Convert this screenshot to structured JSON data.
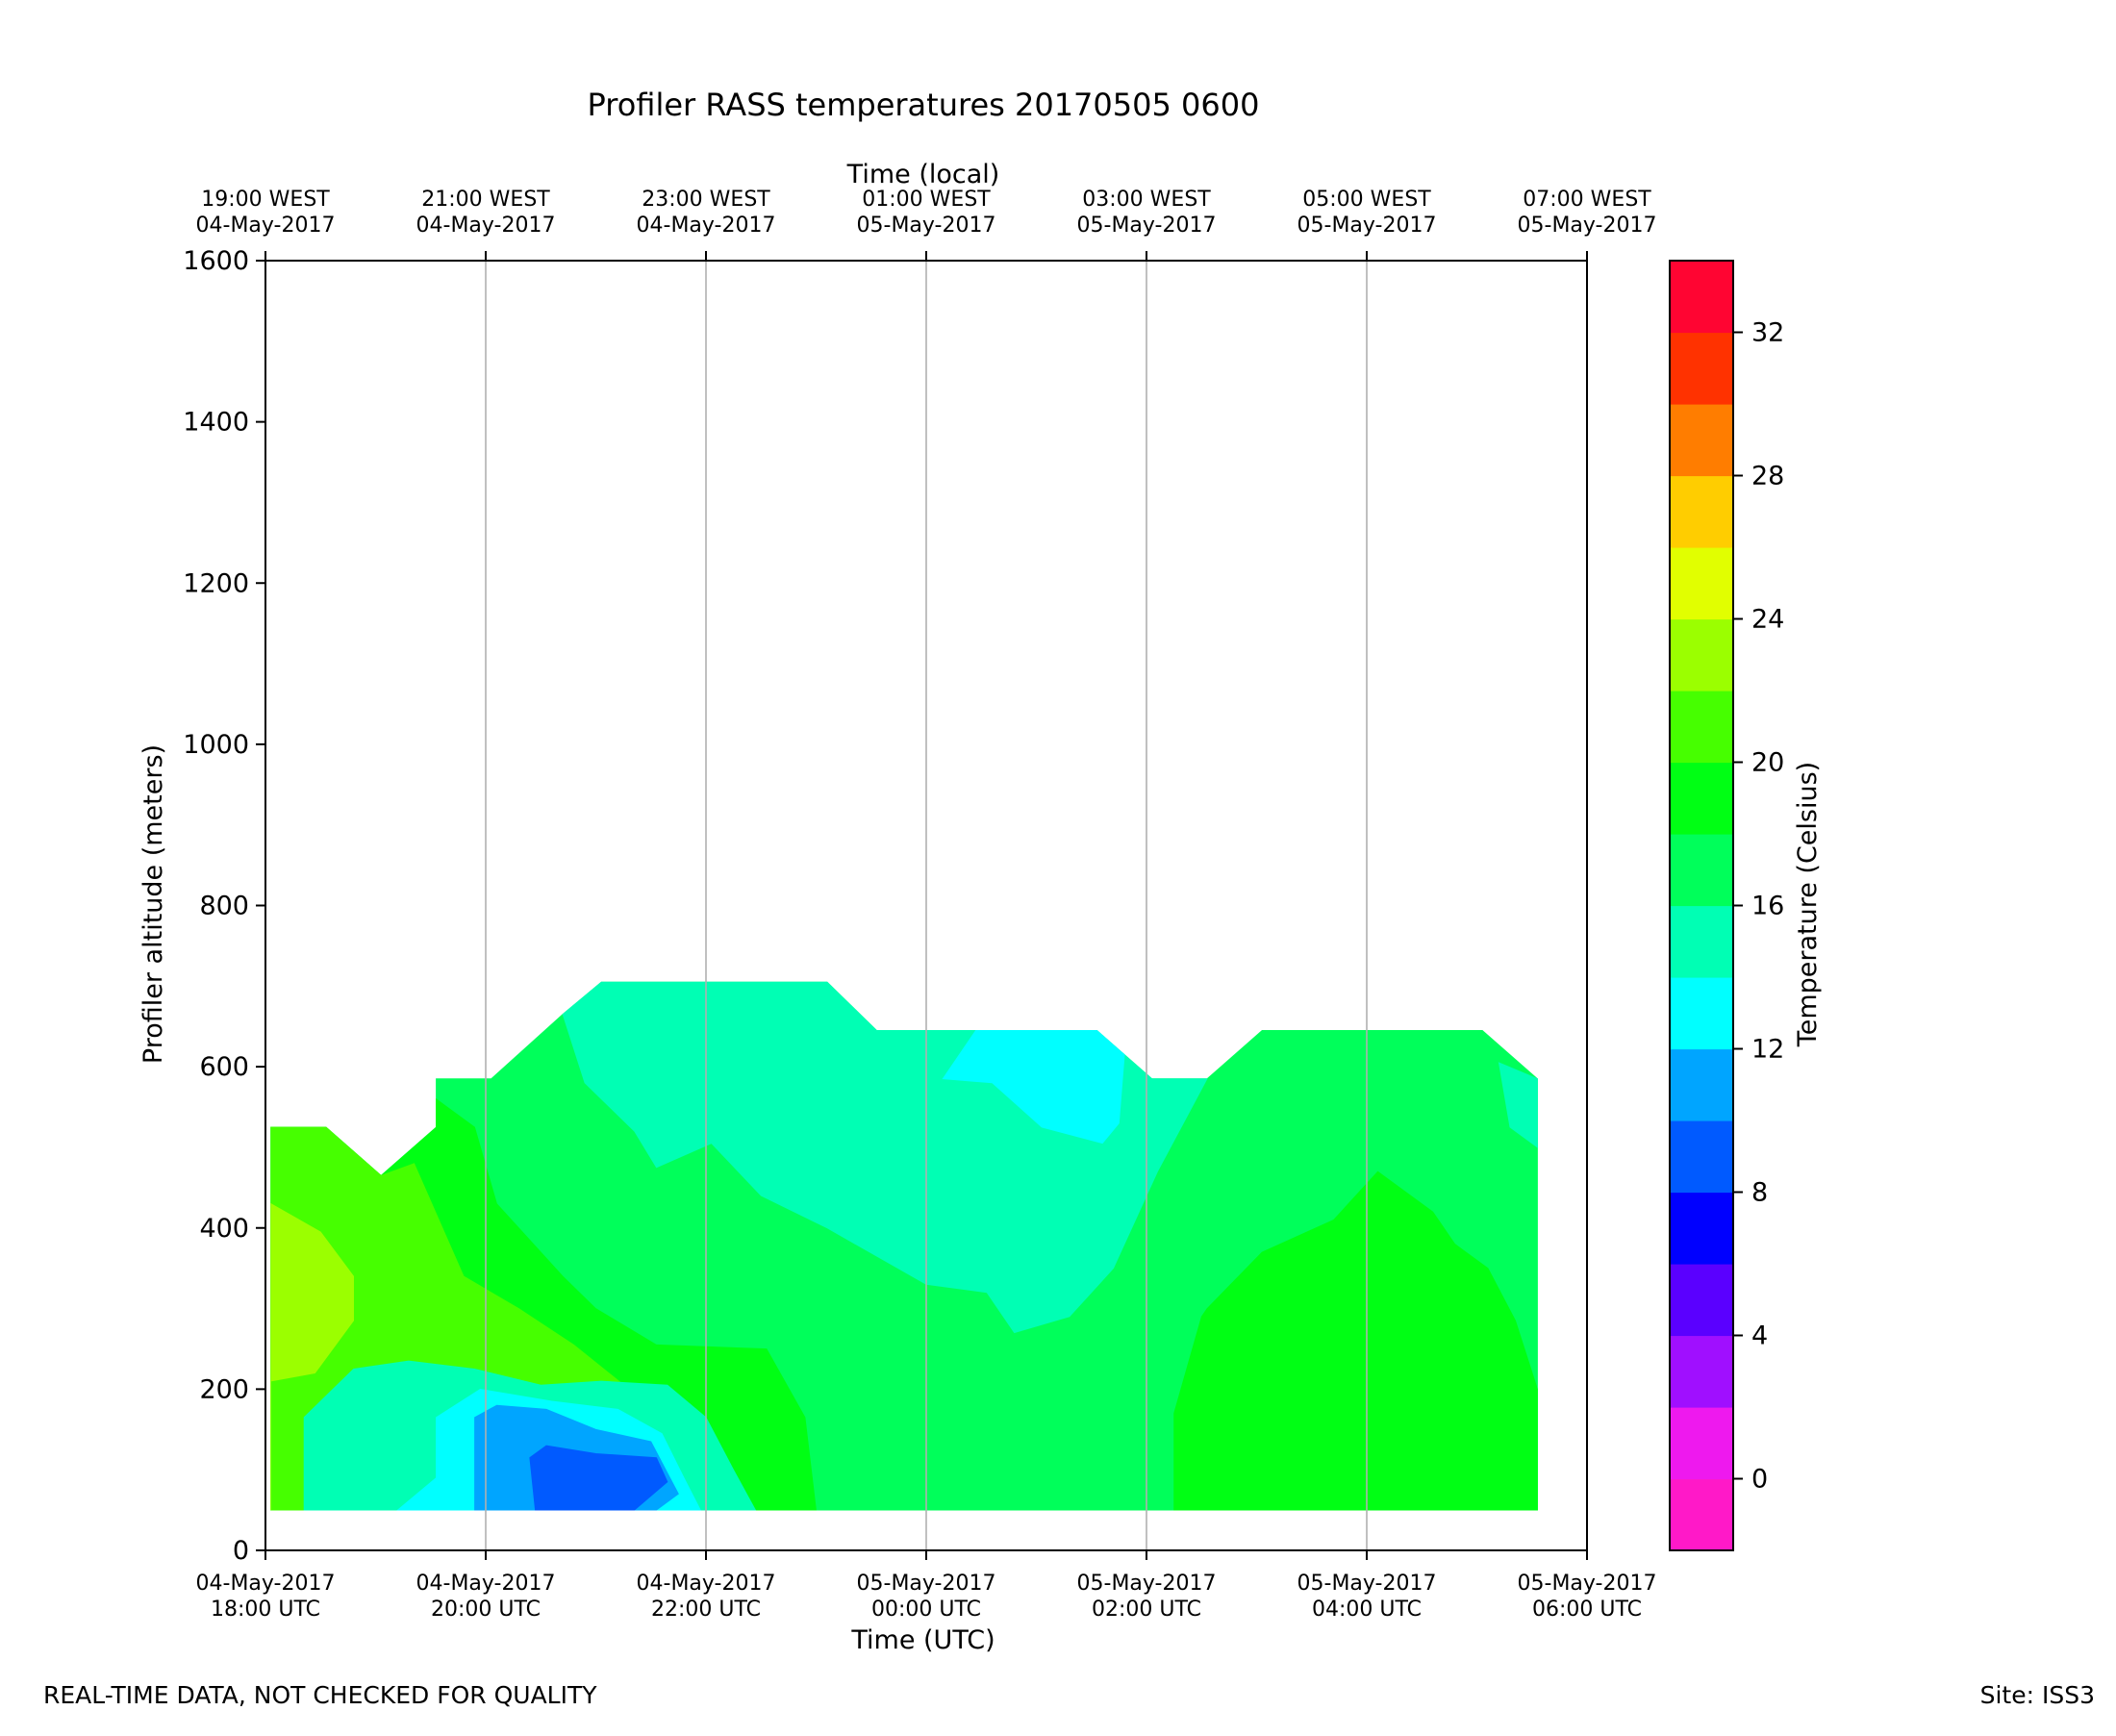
{
  "footer": {
    "disclaimer": "REAL-TIME DATA, NOT CHECKED FOR QUALITY",
    "site": "Site: ISS3"
  },
  "chart_data": {
    "type": "contour",
    "title": "Profiler RASS temperatures 20170505 0600",
    "xlabel": "Time (UTC)",
    "xlabel_top": "Time (local)",
    "ylabel": "Profiler altitude (meters)",
    "colorbar_label": "Temperature (Celsius)",
    "xlim": [
      "04-May-2017 18:00 UTC",
      "05-May-2017 06:00 UTC"
    ],
    "ylim": [
      0,
      1600
    ],
    "grid": "vertical lines at x ticks",
    "x_ticks": [
      {
        "hour_utc": 18,
        "line1": "04-May-2017",
        "line2": "18:00 UTC"
      },
      {
        "hour_utc": 20,
        "line1": "04-May-2017",
        "line2": "20:00 UTC"
      },
      {
        "hour_utc": 22,
        "line1": "04-May-2017",
        "line2": "22:00 UTC"
      },
      {
        "hour_utc": 24,
        "line1": "05-May-2017",
        "line2": "00:00 UTC"
      },
      {
        "hour_utc": 26,
        "line1": "05-May-2017",
        "line2": "02:00 UTC"
      },
      {
        "hour_utc": 28,
        "line1": "05-May-2017",
        "line2": "04:00 UTC"
      },
      {
        "hour_utc": 30,
        "line1": "05-May-2017",
        "line2": "06:00 UTC"
      }
    ],
    "x_ticks_top": [
      {
        "hour_utc": 18,
        "line1": "19:00 WEST",
        "line2": "04-May-2017"
      },
      {
        "hour_utc": 20,
        "line1": "21:00 WEST",
        "line2": "04-May-2017"
      },
      {
        "hour_utc": 22,
        "line1": "23:00 WEST",
        "line2": "04-May-2017"
      },
      {
        "hour_utc": 24,
        "line1": "01:00 WEST",
        "line2": "05-May-2017"
      },
      {
        "hour_utc": 26,
        "line1": "03:00 WEST",
        "line2": "05-May-2017"
      },
      {
        "hour_utc": 28,
        "line1": "05:00 WEST",
        "line2": "05-May-2017"
      },
      {
        "hour_utc": 30,
        "line1": "07:00 WEST",
        "line2": "05-May-2017"
      }
    ],
    "y_ticks": [
      0,
      200,
      400,
      600,
      800,
      1000,
      1200,
      1400,
      1600
    ],
    "colorbar": {
      "range": [
        -2,
        34
      ],
      "step": 2,
      "ticks": [
        0,
        4,
        8,
        12,
        16,
        20,
        24,
        28,
        32
      ],
      "colors": [
        "#ff19c8",
        "#ee19ee",
        "#a00fff",
        "#5a00ff",
        "#0000ff",
        "#005aff",
        "#00a5ff",
        "#00ffff",
        "#00ffb4",
        "#00ff5a",
        "#00ff14",
        "#46ff00",
        "#9bff00",
        "#e1ff00",
        "#ffcd00",
        "#ff7d00",
        "#ff3200",
        "#ff0532"
      ]
    },
    "regions": [
      {
        "level": 16,
        "points": [
          [
            18.05,
            50
          ],
          [
            18.05,
            525
          ],
          [
            18.55,
            525
          ],
          [
            19.05,
            465
          ],
          [
            19.55,
            525
          ],
          [
            19.55,
            585
          ],
          [
            20.05,
            585
          ],
          [
            20.7,
            665
          ],
          [
            21.05,
            705
          ],
          [
            23.1,
            705
          ],
          [
            23.55,
            645
          ],
          [
            25.55,
            645
          ],
          [
            26.05,
            585
          ],
          [
            26.55,
            585
          ],
          [
            27.05,
            645
          ],
          [
            29.05,
            645
          ],
          [
            29.55,
            585
          ],
          [
            29.55,
            50
          ]
        ]
      },
      {
        "level": 18,
        "points": [
          [
            18.05,
            50
          ],
          [
            18.05,
            525
          ],
          [
            18.55,
            525
          ],
          [
            19.05,
            465
          ],
          [
            19.55,
            525
          ],
          [
            19.55,
            560
          ],
          [
            19.9,
            525
          ],
          [
            20.1,
            430
          ],
          [
            20.7,
            340
          ],
          [
            21.0,
            300
          ],
          [
            21.55,
            255
          ],
          [
            22.55,
            250
          ],
          [
            22.9,
            165
          ],
          [
            23.0,
            50
          ]
        ]
      },
      {
        "level": 20,
        "points": [
          [
            18.05,
            50
          ],
          [
            18.05,
            525
          ],
          [
            18.55,
            525
          ],
          [
            19.05,
            465
          ],
          [
            19.35,
            480
          ],
          [
            19.8,
            340
          ],
          [
            20.3,
            300
          ],
          [
            20.8,
            255
          ],
          [
            21.3,
            200
          ],
          [
            21.5,
            180
          ],
          [
            21.0,
            160
          ],
          [
            20.3,
            130
          ],
          [
            19.7,
            100
          ],
          [
            18.8,
            50
          ]
        ]
      },
      {
        "level": 22,
        "points": [
          [
            18.05,
            50
          ],
          [
            18.05,
            430
          ],
          [
            18.5,
            395
          ],
          [
            18.8,
            340
          ],
          [
            18.8,
            285
          ],
          [
            18.45,
            220
          ],
          [
            18.05,
            210
          ]
        ]
      },
      {
        "level": 14,
        "points": [
          [
            18.35,
            50
          ],
          [
            18.35,
            165
          ],
          [
            18.8,
            225
          ],
          [
            19.3,
            235
          ],
          [
            19.9,
            225
          ],
          [
            20.5,
            205
          ],
          [
            21.05,
            210
          ],
          [
            21.65,
            205
          ],
          [
            22.0,
            165
          ],
          [
            22.25,
            100
          ],
          [
            22.45,
            50
          ]
        ]
      },
      {
        "level": 12,
        "points": [
          [
            19.2,
            50
          ],
          [
            19.55,
            90
          ],
          [
            19.55,
            165
          ],
          [
            19.95,
            200
          ],
          [
            20.6,
            185
          ],
          [
            21.2,
            175
          ],
          [
            21.6,
            145
          ],
          [
            21.8,
            90
          ],
          [
            21.95,
            50
          ]
        ]
      },
      {
        "level": 10,
        "points": [
          [
            19.9,
            50
          ],
          [
            19.9,
            165
          ],
          [
            20.1,
            180
          ],
          [
            20.55,
            175
          ],
          [
            21.0,
            150
          ],
          [
            21.5,
            135
          ],
          [
            21.75,
            70
          ],
          [
            21.55,
            50
          ]
        ]
      },
      {
        "level": 8,
        "points": [
          [
            20.45,
            50
          ],
          [
            20.4,
            115
          ],
          [
            20.55,
            130
          ],
          [
            21.0,
            120
          ],
          [
            21.55,
            115
          ],
          [
            21.65,
            85
          ],
          [
            21.35,
            50
          ]
        ]
      },
      {
        "level": 14,
        "points": [
          [
            20.7,
            665
          ],
          [
            21.05,
            705
          ],
          [
            23.1,
            705
          ],
          [
            23.55,
            645
          ],
          [
            25.55,
            645
          ],
          [
            26.05,
            585
          ],
          [
            26.55,
            585
          ],
          [
            26.1,
            470
          ],
          [
            25.7,
            350
          ],
          [
            25.3,
            290
          ],
          [
            24.8,
            270
          ],
          [
            24.55,
            320
          ],
          [
            24.0,
            330
          ],
          [
            23.1,
            400
          ],
          [
            22.5,
            440
          ],
          [
            22.05,
            505
          ],
          [
            21.55,
            475
          ],
          [
            21.35,
            520
          ],
          [
            20.9,
            580
          ]
        ]
      },
      {
        "level": 12,
        "points": [
          [
            24.15,
            585
          ],
          [
            24.45,
            645
          ],
          [
            25.55,
            645
          ],
          [
            25.8,
            615
          ],
          [
            25.75,
            530
          ],
          [
            25.6,
            505
          ],
          [
            25.05,
            525
          ],
          [
            24.6,
            580
          ]
        ]
      },
      {
        "level": 14,
        "points": [
          [
            29.2,
            605
          ],
          [
            29.55,
            585
          ],
          [
            29.55,
            500
          ],
          [
            29.3,
            525
          ]
        ]
      },
      {
        "level": 18,
        "points": [
          [
            26.25,
            50
          ],
          [
            26.25,
            170
          ],
          [
            26.5,
            290
          ],
          [
            26.55,
            300
          ],
          [
            27.05,
            370
          ],
          [
            27.7,
            410
          ],
          [
            28.1,
            470
          ],
          [
            28.6,
            420
          ],
          [
            28.8,
            380
          ],
          [
            29.1,
            350
          ],
          [
            29.35,
            285
          ],
          [
            29.55,
            200
          ],
          [
            29.55,
            50
          ]
        ]
      }
    ]
  }
}
